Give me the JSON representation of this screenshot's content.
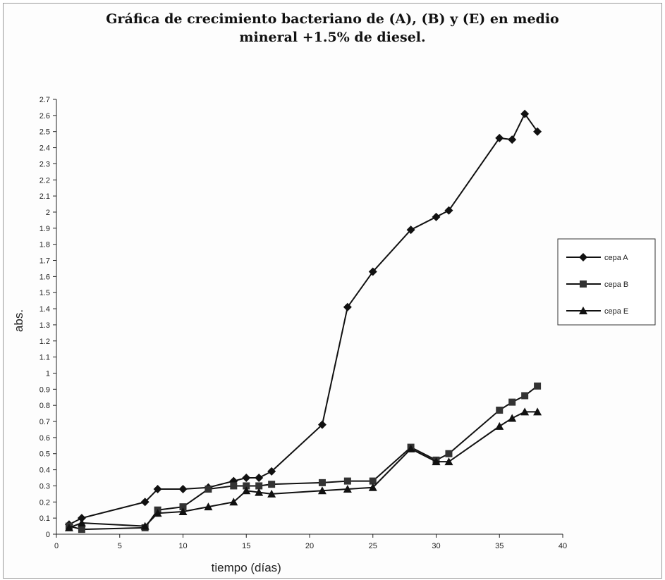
{
  "chart_data": {
    "type": "line",
    "title_line1": "Gráfica de crecimiento bacteriano de (A), (B) y (E) en medio",
    "title_line2": "mineral +1.5% de diesel.",
    "xlabel": "tiempo (días)",
    "ylabel": "abs.",
    "xlim": [
      0,
      40
    ],
    "ylim": [
      0,
      2.7
    ],
    "xticks": [
      0,
      5,
      10,
      15,
      20,
      25,
      30,
      35,
      40
    ],
    "yticks": [
      0,
      0.1,
      0.2,
      0.3,
      0.4,
      0.5,
      0.6,
      0.7,
      0.8,
      0.9,
      1,
      1.1,
      1.2,
      1.3,
      1.4,
      1.5,
      1.6,
      1.7,
      1.8,
      1.9,
      2,
      2.1,
      2.2,
      2.3,
      2.4,
      2.5,
      2.6,
      2.7
    ],
    "grid": false,
    "legend_position": "right",
    "series": [
      {
        "name": "cepa A",
        "marker": "diamond",
        "points": [
          [
            1,
            0.06
          ],
          [
            2,
            0.1
          ],
          [
            7,
            0.2
          ],
          [
            8,
            0.28
          ],
          [
            10,
            0.28
          ],
          [
            12,
            0.29
          ],
          [
            14,
            0.33
          ],
          [
            15,
            0.35
          ],
          [
            16,
            0.35
          ],
          [
            17,
            0.39
          ],
          [
            21,
            0.68
          ],
          [
            23,
            1.41
          ],
          [
            25,
            1.63
          ],
          [
            28,
            1.89
          ],
          [
            30,
            1.97
          ],
          [
            31,
            2.01
          ],
          [
            35,
            2.46
          ],
          [
            36,
            2.45
          ],
          [
            37,
            2.61
          ],
          [
            38,
            2.5
          ]
        ]
      },
      {
        "name": "cepa B",
        "marker": "square",
        "points": [
          [
            1,
            0.05
          ],
          [
            2,
            0.03
          ],
          [
            7,
            0.04
          ],
          [
            8,
            0.15
          ],
          [
            10,
            0.17
          ],
          [
            12,
            0.28
          ],
          [
            14,
            0.3
          ],
          [
            15,
            0.3
          ],
          [
            16,
            0.3
          ],
          [
            17,
            0.31
          ],
          [
            21,
            0.32
          ],
          [
            23,
            0.33
          ],
          [
            25,
            0.33
          ],
          [
            28,
            0.54
          ],
          [
            30,
            0.46
          ],
          [
            31,
            0.5
          ],
          [
            35,
            0.77
          ],
          [
            36,
            0.82
          ],
          [
            37,
            0.86
          ],
          [
            38,
            0.92
          ]
        ]
      },
      {
        "name": "cepa E",
        "marker": "triangle",
        "points": [
          [
            1,
            0.04
          ],
          [
            2,
            0.07
          ],
          [
            7,
            0.05
          ],
          [
            8,
            0.13
          ],
          [
            10,
            0.14
          ],
          [
            12,
            0.17
          ],
          [
            14,
            0.2
          ],
          [
            15,
            0.27
          ],
          [
            16,
            0.26
          ],
          [
            17,
            0.25
          ],
          [
            21,
            0.27
          ],
          [
            23,
            0.28
          ],
          [
            25,
            0.29
          ],
          [
            28,
            0.53
          ],
          [
            30,
            0.45
          ],
          [
            31,
            0.45
          ],
          [
            35,
            0.67
          ],
          [
            36,
            0.72
          ],
          [
            37,
            0.76
          ],
          [
            38,
            0.76
          ]
        ]
      }
    ]
  }
}
